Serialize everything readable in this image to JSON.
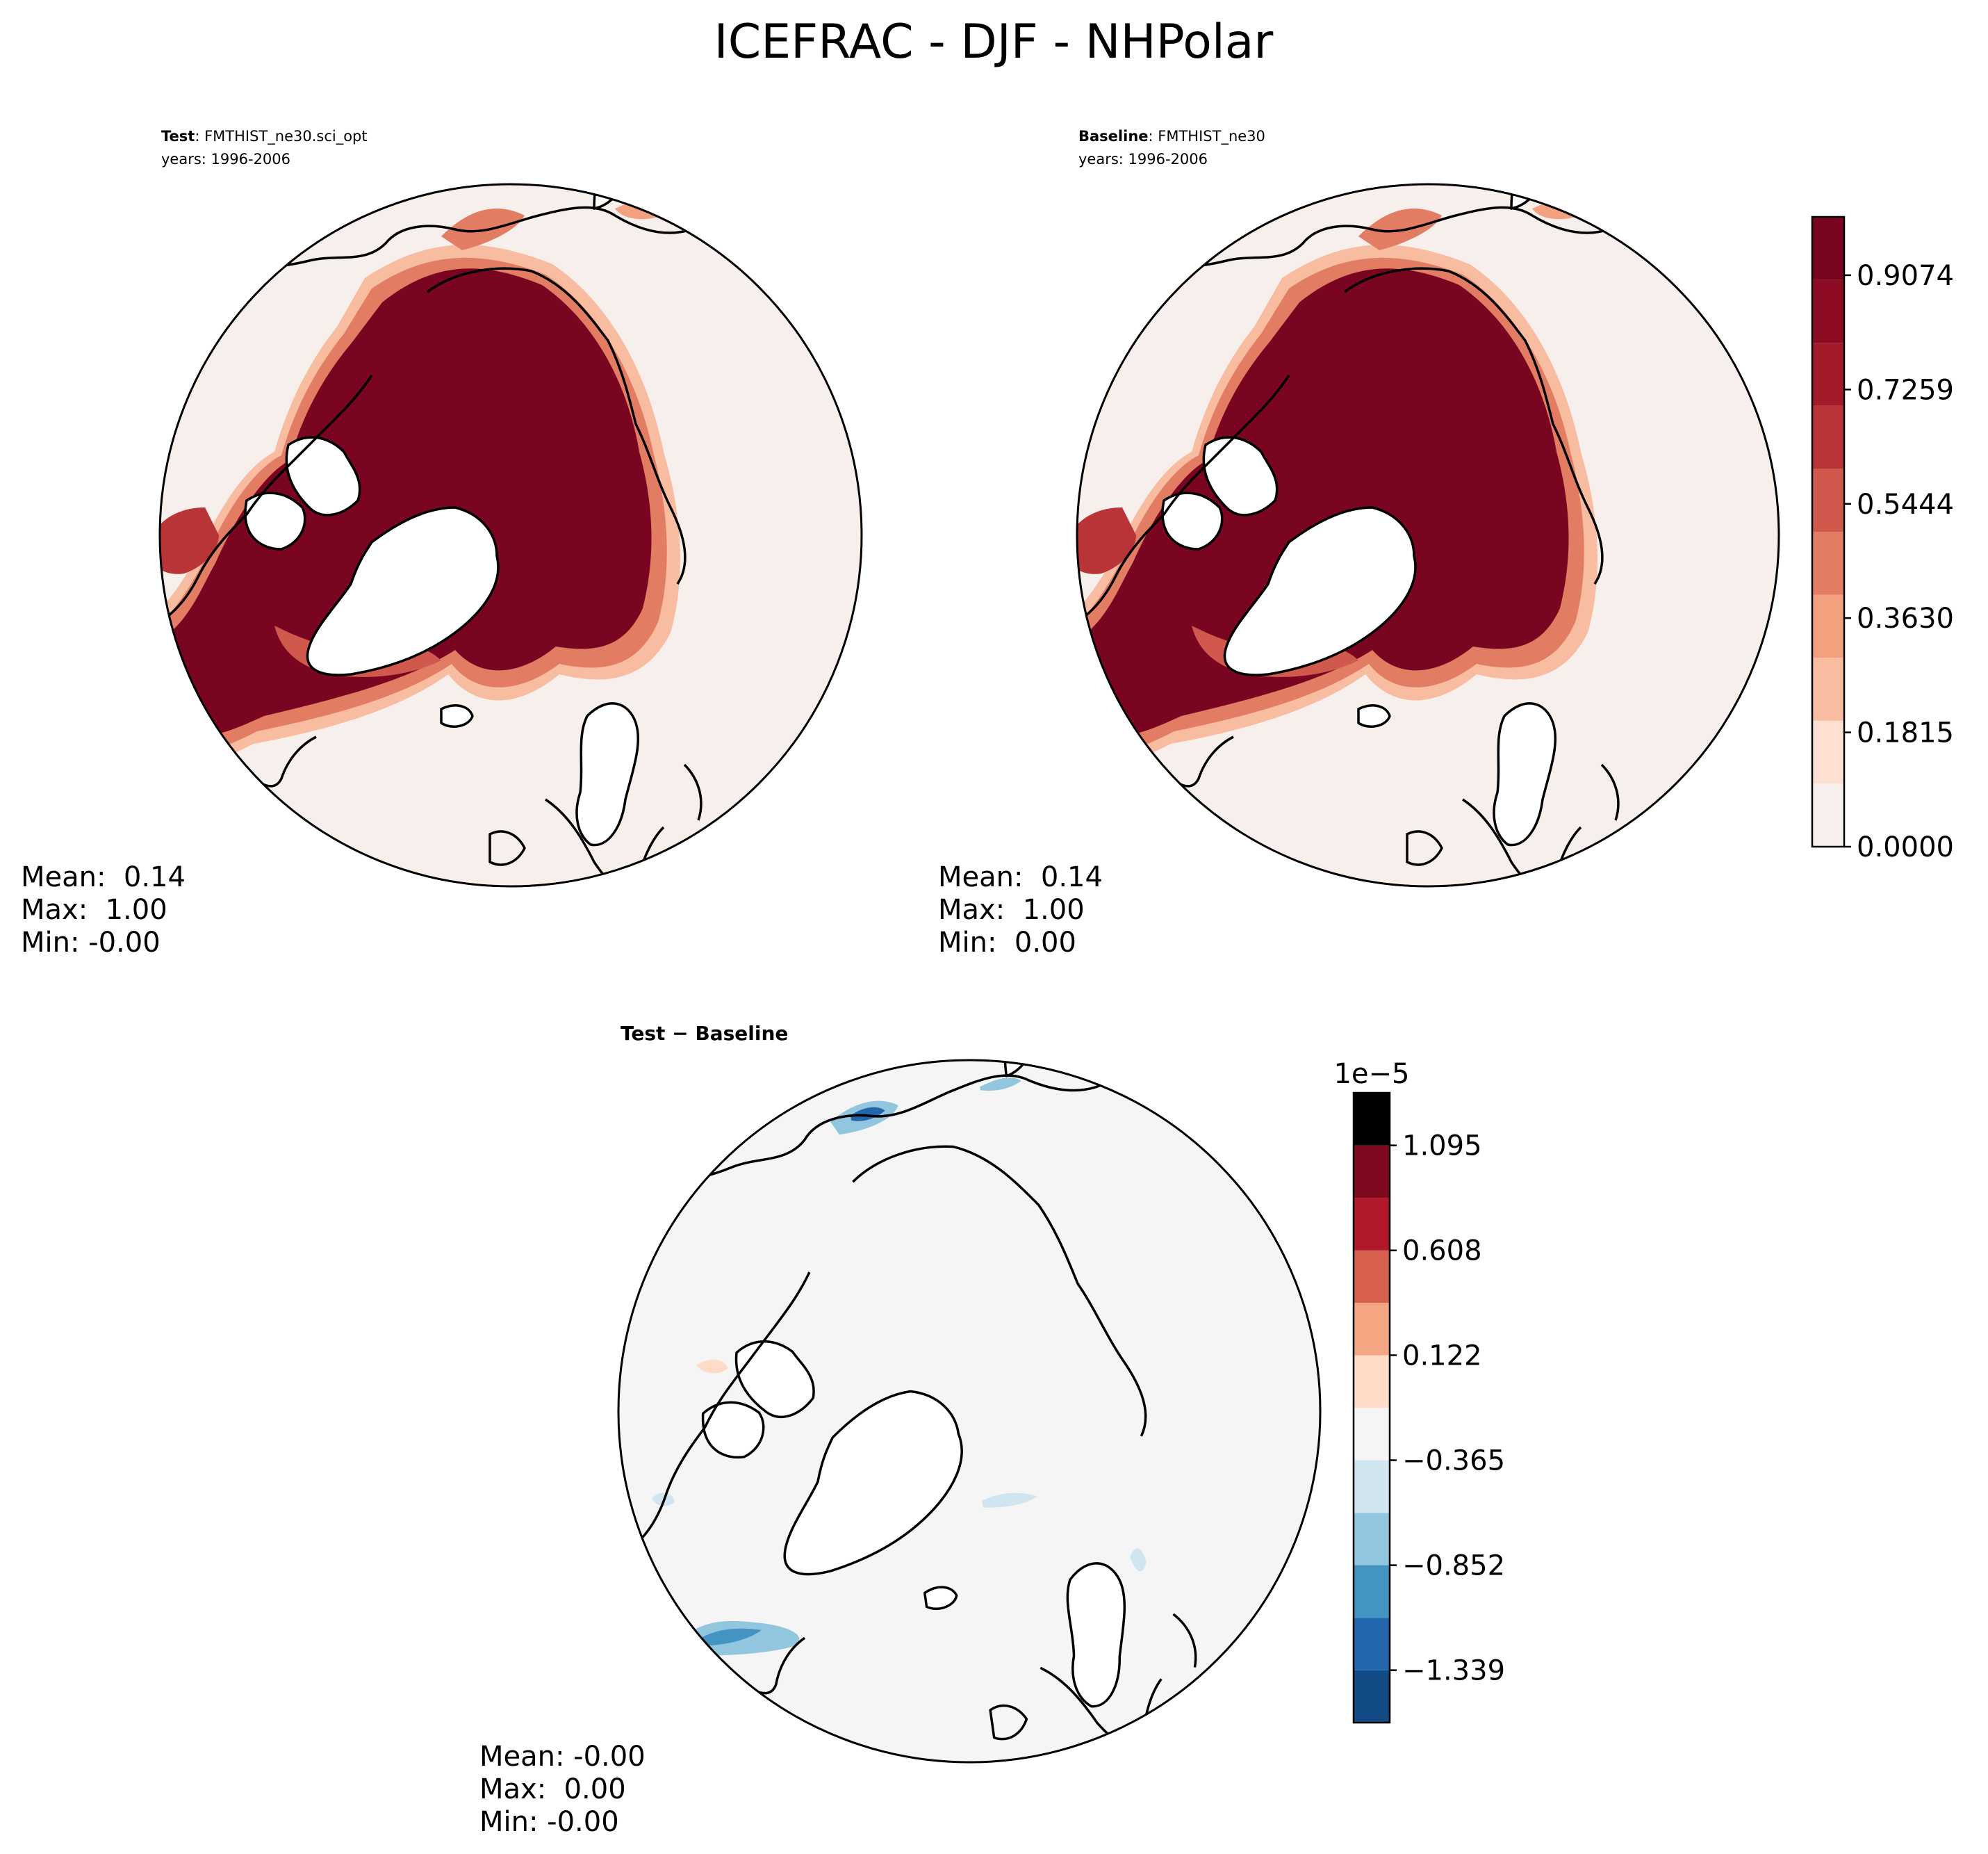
{
  "figure": {
    "title": "ICEFRAC - DJF - NHPolar"
  },
  "colors": {
    "reds": [
      "#f7f0ed",
      "#fde0d2",
      "#f8bda0",
      "#f3a07e",
      "#e27c63",
      "#d0584d",
      "#b93436",
      "#a31a2a",
      "#8d0c23",
      "#7a0520"
    ],
    "diverging": [
      "#124b85",
      "#2266ac",
      "#4393c3",
      "#92c5de",
      "#d1e5f0",
      "#f5f5f5",
      "#fddbc7",
      "#f4a582",
      "#d6604d",
      "#b2182b",
      "#7f0a1f"
    ],
    "background_test": "#f7efeb",
    "background_diff": "#f5f5f5"
  },
  "panels": {
    "test": {
      "label_bold": "Test",
      "label_sep": ": ",
      "label_case": "FMTHIST_ne30.sci_opt",
      "years": "years: 1996-2006",
      "mean": "Mean:  0.14",
      "max": "Max:  1.00",
      "min": "Min: -0.00"
    },
    "baseline": {
      "label_bold": "Baseline",
      "label_sep": ": ",
      "label_case": "FMTHIST_ne30",
      "years": "years: 1996-2006",
      "mean": "Mean:  0.14",
      "max": "Max:  1.00",
      "min": "Min:  0.00"
    },
    "diff": {
      "label": "Test − Baseline",
      "mean": "Mean: -0.00",
      "max": "Max:  0.00",
      "min": "Min: -0.00"
    }
  },
  "chart_data": [
    {
      "type": "heatmap",
      "name": "test",
      "projection": "north-polar-stereographic",
      "colorbar": {
        "levels": [
          0.0,
          0.1,
          0.2,
          0.3,
          0.4,
          0.5,
          0.6,
          0.7,
          0.8,
          0.9,
          1.0
        ],
        "tick_values": [
          0.0,
          0.1815,
          0.363,
          0.5444,
          0.7259,
          0.9074
        ],
        "tick_labels": [
          "0.0000",
          "0.1815",
          "0.3630",
          "0.5444",
          "0.7259",
          "0.9074"
        ]
      },
      "stats": {
        "mean": 0.14,
        "max": 1.0,
        "min": -0.0
      }
    },
    {
      "type": "heatmap",
      "name": "baseline",
      "projection": "north-polar-stereographic",
      "stats": {
        "mean": 0.14,
        "max": 1.0,
        "min": 0.0
      }
    },
    {
      "type": "heatmap",
      "name": "diff",
      "projection": "north-polar-stereographic",
      "colorbar": {
        "scale_label": "1e−5",
        "levels": [
          -1.582,
          -1.339,
          -1.096,
          -0.852,
          -0.609,
          -0.365,
          -0.122,
          0.122,
          0.365,
          0.608,
          0.852,
          1.095,
          1.339
        ],
        "tick_values": [
          -1.339,
          -0.852,
          -0.365,
          0.122,
          0.608,
          1.095
        ],
        "tick_labels": [
          "−1.339",
          "−0.852",
          "−0.365",
          "0.122",
          "0.608",
          "1.095"
        ]
      },
      "stats": {
        "mean": -0.0,
        "max": 0.0,
        "min": -0.0
      }
    }
  ]
}
